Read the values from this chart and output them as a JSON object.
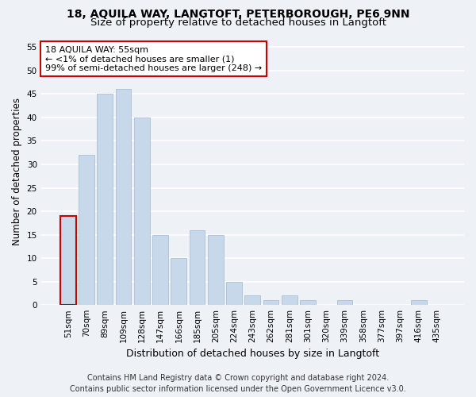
{
  "title_line1": "18, AQUILA WAY, LANGTOFT, PETERBOROUGH, PE6 9NN",
  "title_line2": "Size of property relative to detached houses in Langtoft",
  "xlabel": "Distribution of detached houses by size in Langtoft",
  "ylabel": "Number of detached properties",
  "categories": [
    "51sqm",
    "70sqm",
    "89sqm",
    "109sqm",
    "128sqm",
    "147sqm",
    "166sqm",
    "185sqm",
    "205sqm",
    "224sqm",
    "243sqm",
    "262sqm",
    "281sqm",
    "301sqm",
    "320sqm",
    "339sqm",
    "358sqm",
    "377sqm",
    "397sqm",
    "416sqm",
    "435sqm"
  ],
  "values": [
    19,
    32,
    45,
    46,
    40,
    15,
    10,
    16,
    15,
    5,
    2,
    1,
    2,
    1,
    0,
    1,
    0,
    0,
    0,
    1,
    0
  ],
  "bar_color": "#c8d8eb",
  "bar_edge_color": "#a0b8d0",
  "highlight_bar_index": 0,
  "highlight_edge_color": "#cc0000",
  "annotation_title": "18 AQUILA WAY: 55sqm",
  "annotation_line1": "← <1% of detached houses are smaller (1)",
  "annotation_line2": "99% of semi-detached houses are larger (248) →",
  "annotation_box_color": "#ffffff",
  "annotation_box_edge": "#cc0000",
  "ylim": [
    0,
    57
  ],
  "yticks": [
    0,
    5,
    10,
    15,
    20,
    25,
    30,
    35,
    40,
    45,
    50,
    55
  ],
  "footer_line1": "Contains HM Land Registry data © Crown copyright and database right 2024.",
  "footer_line2": "Contains public sector information licensed under the Open Government Licence v3.0.",
  "background_color": "#eef2f7",
  "grid_color": "#ffffff",
  "title_fontsize": 10,
  "subtitle_fontsize": 9.5,
  "tick_fontsize": 7.5,
  "xlabel_fontsize": 9,
  "ylabel_fontsize": 8.5,
  "footer_fontsize": 7,
  "annotation_fontsize": 8
}
